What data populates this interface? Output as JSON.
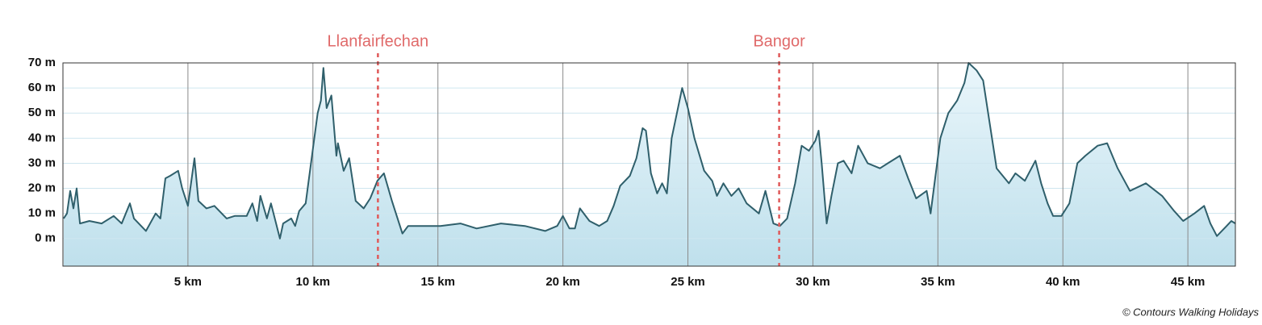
{
  "chart_data": {
    "type": "area",
    "color": "#2f5f6b",
    "fill": "#bfe0ec",
    "x": [
      0.03,
      0.16,
      0.29,
      0.42,
      0.55,
      0.68,
      1.06,
      1.55,
      2.03,
      2.35,
      2.68,
      2.84,
      3.32,
      3.71,
      3.9,
      4.1,
      4.29,
      4.61,
      4.77,
      5.0,
      5.26,
      5.42,
      5.74,
      6.06,
      6.55,
      6.87,
      7.35,
      7.58,
      7.77,
      7.9,
      8.16,
      8.32,
      8.68,
      8.81,
      9.13,
      9.29,
      9.45,
      9.71,
      10.03,
      10.19,
      10.32,
      10.42,
      10.55,
      10.74,
      10.94,
      11.0,
      11.23,
      11.45,
      11.71,
      12.03,
      12.29,
      12.58,
      12.84,
      13.16,
      13.58,
      13.81,
      14.61,
      15.1,
      15.9,
      16.55,
      17.52,
      18.48,
      19.29,
      19.77,
      20.0,
      20.26,
      20.48,
      20.68,
      21.06,
      21.45,
      21.77,
      22.03,
      22.29,
      22.68,
      22.94,
      23.19,
      23.32,
      23.52,
      23.77,
      23.97,
      24.16,
      24.35,
      24.77,
      25.0,
      25.26,
      25.65,
      25.97,
      26.16,
      26.42,
      26.74,
      27.03,
      27.35,
      27.84,
      28.1,
      28.42,
      28.68,
      28.97,
      29.29,
      29.55,
      29.84,
      30.1,
      30.23,
      30.35,
      30.55,
      30.74,
      31.0,
      31.23,
      31.55,
      31.81,
      32.19,
      32.68,
      33.0,
      33.48,
      33.81,
      34.13,
      34.55,
      34.71,
      35.1,
      35.42,
      35.77,
      36.06,
      36.23,
      36.55,
      36.81,
      37.35,
      37.84,
      38.1,
      38.48,
      38.9,
      39.13,
      39.39,
      39.61,
      39.94,
      40.26,
      40.58,
      40.9,
      41.39,
      41.77,
      42.19,
      42.68,
      43.32,
      43.97,
      44.45,
      44.81,
      45.26,
      45.65,
      45.9,
      46.16,
      46.55,
      46.74,
      46.9
    ],
    "values": [
      8,
      10,
      19,
      12,
      20,
      6,
      7,
      6,
      9,
      6,
      14,
      8,
      3,
      10,
      8,
      24,
      25,
      27,
      20,
      13,
      32,
      15,
      12,
      13,
      8,
      9,
      9,
      14,
      7,
      17,
      8,
      14,
      0,
      6,
      8,
      5,
      11,
      14,
      38,
      50,
      55,
      68,
      52,
      57,
      33,
      38,
      27,
      32,
      15,
      12,
      16,
      23,
      26,
      15,
      2,
      5,
      5,
      5,
      6,
      4,
      6,
      5,
      3,
      5,
      9,
      4,
      4,
      12,
      7,
      5,
      7,
      13,
      21,
      25,
      32,
      44,
      43,
      26,
      18,
      22,
      18,
      40,
      60,
      52,
      40,
      27,
      23,
      17,
      22,
      17,
      20,
      14,
      10,
      19,
      6,
      5,
      8,
      22,
      37,
      35,
      39,
      43,
      30,
      6,
      17,
      30,
      31,
      26,
      37,
      30,
      28,
      30,
      33,
      24,
      16,
      19,
      10,
      40,
      50,
      55,
      62,
      70,
      67,
      63,
      28,
      22,
      26,
      23,
      31,
      22,
      14,
      9,
      9,
      14,
      30,
      33,
      37,
      38,
      28,
      19,
      22,
      17,
      11,
      7,
      10,
      13,
      6,
      1,
      5,
      7,
      6
    ],
    "xlim": [
      0,
      46.9
    ],
    "ylim": [
      -11,
      70
    ],
    "xticks": [
      {
        "value": 5,
        "label": "5 km"
      },
      {
        "value": 10,
        "label": "10 km"
      },
      {
        "value": 15,
        "label": "15 km"
      },
      {
        "value": 20,
        "label": "20 km"
      },
      {
        "value": 25,
        "label": "25 km"
      },
      {
        "value": 30,
        "label": "30 km"
      },
      {
        "value": 35,
        "label": "35 km"
      },
      {
        "value": 40,
        "label": "40 km"
      },
      {
        "value": 45,
        "label": "45 km"
      }
    ],
    "yticks": [
      {
        "value": 0,
        "label": "0 m"
      },
      {
        "value": 10,
        "label": "10 m"
      },
      {
        "value": 20,
        "label": "20 m"
      },
      {
        "value": 30,
        "label": "30 m"
      },
      {
        "value": 40,
        "label": "40 m"
      },
      {
        "value": 50,
        "label": "50 m"
      },
      {
        "value": 60,
        "label": "60 m"
      },
      {
        "value": 70,
        "label": "70 m"
      }
    ],
    "grid": true,
    "markers": [
      {
        "x": 12.6,
        "label": "Llanfairfechan"
      },
      {
        "x": 28.65,
        "label": "Bangor"
      }
    ],
    "credit": "© Contours Walking Holidays"
  }
}
